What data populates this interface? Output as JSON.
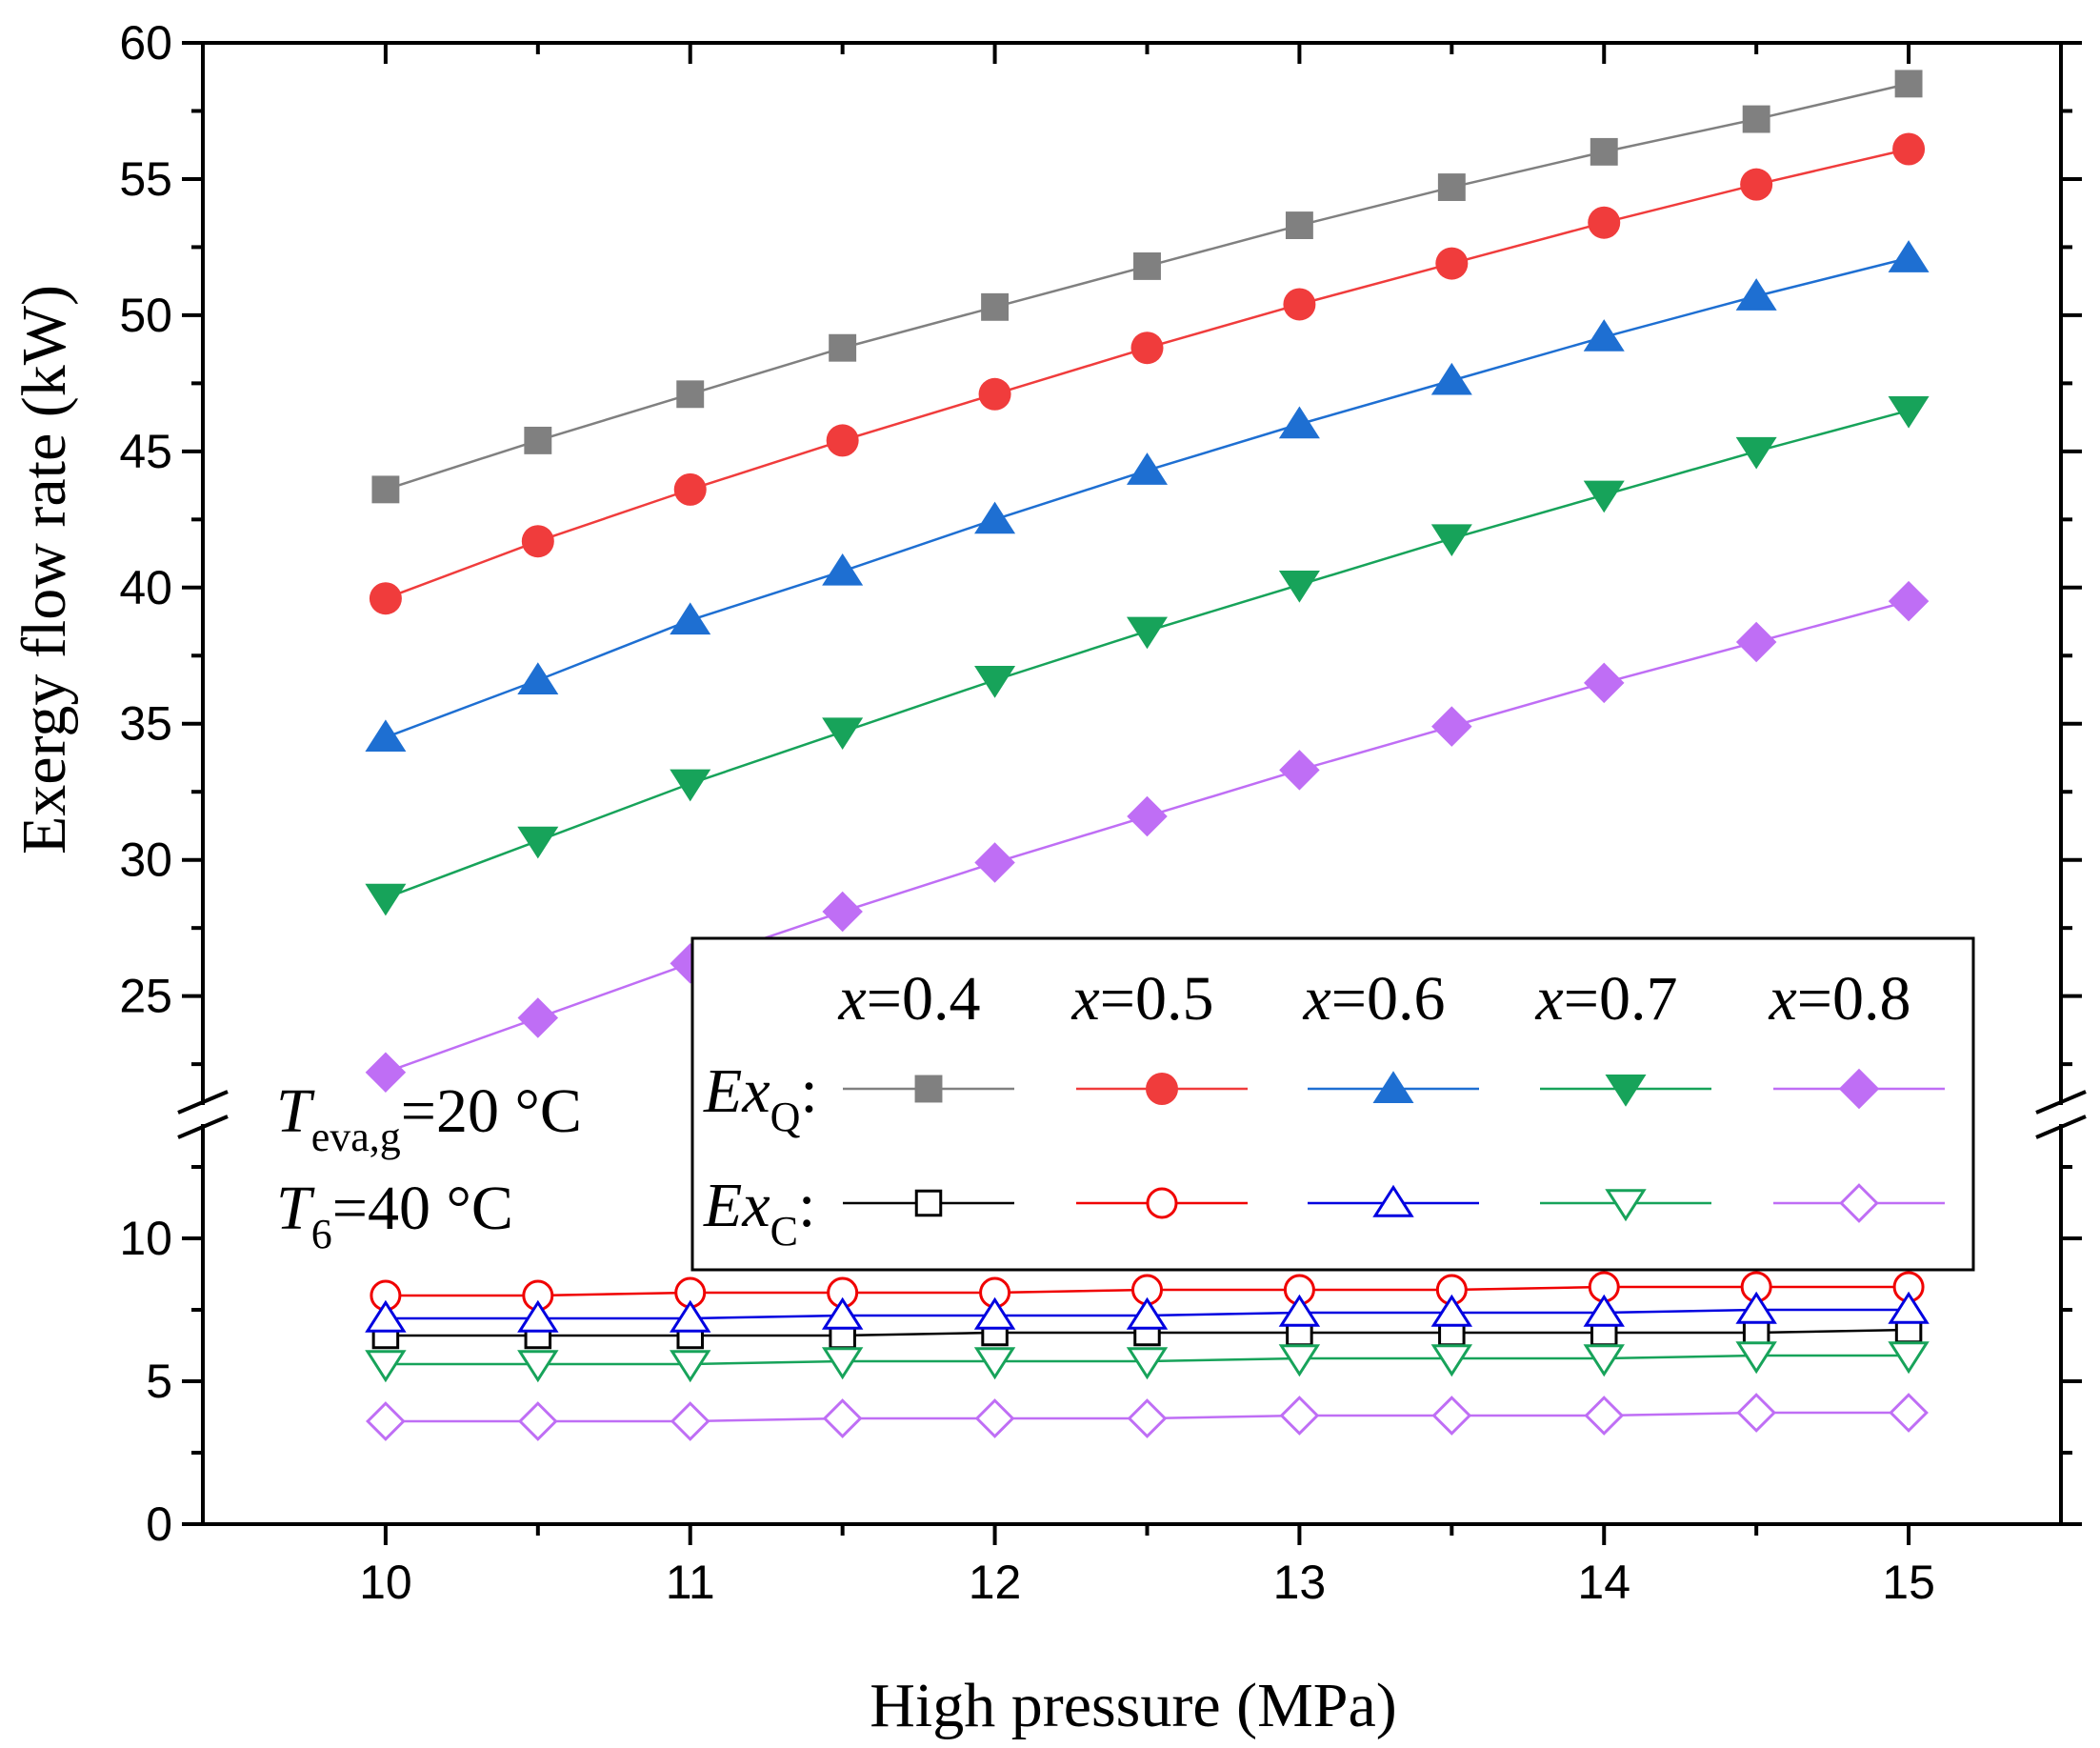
{
  "chart_data": {
    "type": "line",
    "title": "",
    "xlabel": "High pressure (MPa)",
    "ylabel": "Exergy flow rate (kW)",
    "xlim": [
      9.4,
      15.5
    ],
    "ylim": [
      0,
      60
    ],
    "y_axis_break": [
      14,
      21
    ],
    "x_ticks": [
      "10",
      "11",
      "12",
      "13",
      "14",
      "15"
    ],
    "y_ticks_lower": [
      "0",
      "5",
      "10"
    ],
    "y_ticks_upper": [
      "25",
      "30",
      "35",
      "40",
      "45",
      "50",
      "55",
      "60"
    ],
    "x": [
      10,
      10.5,
      11,
      11.5,
      12,
      12.5,
      13,
      13.5,
      14,
      14.5,
      15
    ],
    "series": [
      {
        "name": "ExQ x=0.4",
        "group": "ExQ",
        "x_value": "x=0.4",
        "color": "#808080",
        "marker": "square",
        "filled": true,
        "values": [
          43.6,
          45.4,
          47.1,
          48.8,
          50.3,
          51.8,
          53.3,
          54.7,
          56.0,
          57.2,
          58.5
        ]
      },
      {
        "name": "ExQ x=0.5",
        "group": "ExQ",
        "x_value": "x=0.5",
        "color": "#f03c3c",
        "marker": "circle",
        "filled": true,
        "values": [
          39.6,
          41.7,
          43.6,
          45.4,
          47.1,
          48.8,
          50.4,
          51.9,
          53.4,
          54.8,
          56.1
        ]
      },
      {
        "name": "ExQ x=0.6",
        "group": "ExQ",
        "x_value": "x=0.6",
        "color": "#1e6fd2",
        "marker": "triangle-up",
        "filled": true,
        "values": [
          34.5,
          36.6,
          38.8,
          40.6,
          42.5,
          44.3,
          46.0,
          47.6,
          49.2,
          50.7,
          52.1
        ]
      },
      {
        "name": "ExQ x=0.7",
        "group": "ExQ",
        "x_value": "x=0.7",
        "color": "#17a35a",
        "marker": "triangle-down",
        "filled": true,
        "values": [
          28.6,
          30.7,
          32.8,
          34.7,
          36.6,
          38.4,
          40.1,
          41.8,
          43.4,
          45.0,
          46.5
        ]
      },
      {
        "name": "ExQ x=0.8",
        "group": "ExQ",
        "x_value": "x=0.8",
        "color": "#bf6ef5",
        "marker": "diamond",
        "filled": true,
        "values": [
          22.2,
          24.2,
          26.2,
          28.1,
          29.9,
          31.6,
          33.3,
          34.9,
          36.5,
          38.0,
          39.5
        ]
      },
      {
        "name": "ExC x=0.4",
        "group": "ExC",
        "x_value": "x=0.4",
        "color": "#000000",
        "marker": "square",
        "filled": false,
        "values": [
          6.6,
          6.6,
          6.6,
          6.6,
          6.7,
          6.7,
          6.7,
          6.7,
          6.7,
          6.7,
          6.8
        ]
      },
      {
        "name": "ExC x=0.5",
        "group": "ExC",
        "x_value": "x=0.5",
        "color": "#f00000",
        "marker": "circle",
        "filled": false,
        "values": [
          8.0,
          8.0,
          8.1,
          8.1,
          8.1,
          8.2,
          8.2,
          8.2,
          8.3,
          8.3,
          8.3
        ]
      },
      {
        "name": "ExC x=0.6",
        "group": "ExC",
        "x_value": "x=0.6",
        "color": "#0000e0",
        "marker": "triangle-up",
        "filled": false,
        "values": [
          7.2,
          7.2,
          7.2,
          7.3,
          7.3,
          7.3,
          7.4,
          7.4,
          7.4,
          7.5,
          7.5
        ]
      },
      {
        "name": "ExC x=0.7",
        "group": "ExC",
        "x_value": "x=0.7",
        "color": "#17a35a",
        "marker": "triangle-down",
        "filled": false,
        "values": [
          5.6,
          5.6,
          5.6,
          5.7,
          5.7,
          5.7,
          5.8,
          5.8,
          5.8,
          5.9,
          5.9
        ]
      },
      {
        "name": "ExC x=0.8",
        "group": "ExC",
        "x_value": "x=0.8",
        "color": "#bf6ef5",
        "marker": "diamond",
        "filled": false,
        "values": [
          3.6,
          3.6,
          3.6,
          3.7,
          3.7,
          3.7,
          3.8,
          3.8,
          3.8,
          3.9,
          3.9
        ]
      }
    ],
    "legend": {
      "placement": "bottom-right",
      "headers": [
        {
          "var": "x",
          "val": "=0.4"
        },
        {
          "var": "x",
          "val": "=0.5"
        },
        {
          "var": "x",
          "val": "=0.6"
        },
        {
          "var": "x",
          "val": "=0.7"
        },
        {
          "var": "x",
          "val": "=0.8"
        }
      ],
      "rows": [
        {
          "group": "ExQ",
          "main": "Ex",
          "sub": "Q",
          "colon": ":"
        },
        {
          "group": "ExC",
          "main": "Ex",
          "sub": "C",
          "colon": ":"
        }
      ]
    },
    "annotations": [
      {
        "main": "T",
        "sub": "eva,g",
        "rest": "=20 °C"
      },
      {
        "main": "T",
        "sub": "6",
        "rest": "=40 °C"
      }
    ]
  }
}
